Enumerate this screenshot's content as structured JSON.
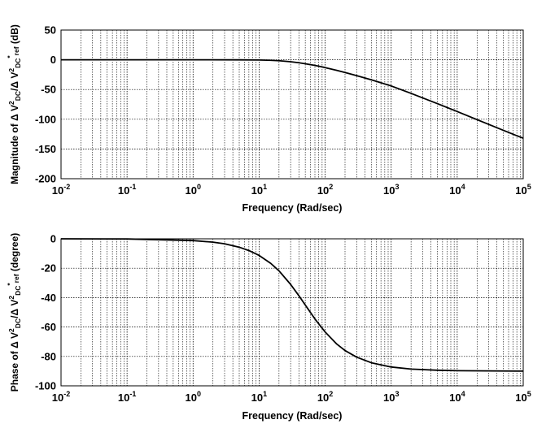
{
  "chart_data": [
    {
      "type": "line",
      "xscale": "log",
      "xlim": [
        0.01,
        100000
      ],
      "ylim": [
        -200,
        50
      ],
      "grid": true,
      "xlabel": "Frequency (Rad/sec)",
      "ylabel": {
        "before": "Magnitude of Δ V",
        "sup1": "2",
        "sub1": "DC",
        "mid": "/Δ V",
        "sup2": "2",
        "sub2": "DC",
        "tail_sup": "*",
        "sub3": "ref",
        "after": " (dB)"
      },
      "x_ticks": [
        {
          "base": "10",
          "exp": "-2",
          "value": 0.01
        },
        {
          "base": "10",
          "exp": "-1",
          "value": 0.1
        },
        {
          "base": "10",
          "exp": "0",
          "value": 1
        },
        {
          "base": "10",
          "exp": "1",
          "value": 10
        },
        {
          "base": "10",
          "exp": "2",
          "value": 100
        },
        {
          "base": "10",
          "exp": "3",
          "value": 1000
        },
        {
          "base": "10",
          "exp": "4",
          "value": 10000
        },
        {
          "base": "10",
          "exp": "5",
          "value": 100000
        }
      ],
      "y_ticks": [
        "50",
        "0",
        "-50",
        "-100",
        "-150",
        "-200"
      ],
      "series": [
        {
          "x": [
            0.01,
            0.1,
            1,
            5,
            10,
            15,
            20,
            30,
            40,
            50,
            70,
            100,
            150,
            200,
            300,
            500,
            700,
            1000,
            2000,
            5000,
            10000,
            20000,
            50000,
            100000
          ],
          "y": [
            0,
            0,
            0,
            -0.1,
            -0.4,
            -0.9,
            -1.6,
            -3.3,
            -5.0,
            -6.7,
            -9.5,
            -13.1,
            -17.8,
            -21.4,
            -26.7,
            -33.7,
            -38.6,
            -44.0,
            -56.5,
            -73.7,
            -87.0,
            -100.7,
            -118.6,
            -132.0
          ]
        }
      ]
    },
    {
      "type": "line",
      "xscale": "log",
      "xlim": [
        0.01,
        100000
      ],
      "ylim": [
        -100,
        0
      ],
      "grid": true,
      "xlabel": "Frequency (Rad/sec)",
      "ylabel": {
        "before": "Phase of Δ V",
        "sup1": "2",
        "sub1": "DC",
        "mid": "/Δ V",
        "sup2": "2",
        "sub2": "DC",
        "tail_sup": "*",
        "sub3": "ref",
        "after": "  (degree)"
      },
      "x_ticks": [
        {
          "base": "10",
          "exp": "-2",
          "value": 0.01
        },
        {
          "base": "10",
          "exp": "-1",
          "value": 0.1
        },
        {
          "base": "10",
          "exp": "0",
          "value": 1
        },
        {
          "base": "10",
          "exp": "1",
          "value": 10
        },
        {
          "base": "10",
          "exp": "2",
          "value": 100
        },
        {
          "base": "10",
          "exp": "3",
          "value": 1000
        },
        {
          "base": "10",
          "exp": "4",
          "value": 10000
        },
        {
          "base": "10",
          "exp": "5",
          "value": 100000
        }
      ],
      "y_ticks": [
        "0",
        "-20",
        "-40",
        "-60",
        "-80",
        "-100"
      ],
      "series": [
        {
          "x": [
            0.01,
            0.1,
            1,
            2,
            3,
            5,
            7,
            10,
            15,
            20,
            30,
            40,
            50,
            70,
            100,
            150,
            200,
            300,
            500,
            1000,
            2000,
            5000,
            10000,
            100000
          ],
          "y": [
            0,
            -0.1,
            -1.2,
            -2.3,
            -3.4,
            -5.7,
            -8.0,
            -11.3,
            -16.7,
            -21.8,
            -31.0,
            -38.7,
            -45.0,
            -54.5,
            -63.4,
            -71.6,
            -76.0,
            -80.5,
            -84.3,
            -87.2,
            -88.6,
            -89.4,
            -89.7,
            -90.0
          ]
        }
      ]
    }
  ]
}
